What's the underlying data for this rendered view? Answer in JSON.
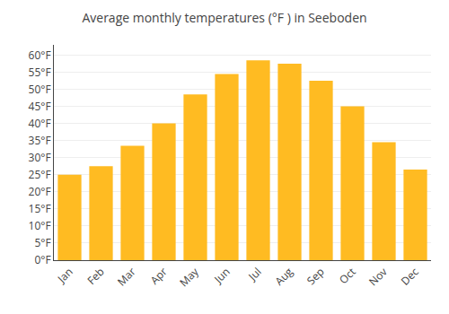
{
  "chart_data": {
    "type": "bar",
    "title": "Average monthly temperatures (°F ) in Seeboden",
    "categories": [
      "Jan",
      "Feb",
      "Mar",
      "Apr",
      "May",
      "Jun",
      "Jul",
      "Aug",
      "Sep",
      "Oct",
      "Nov",
      "Dec"
    ],
    "values": [
      25.0,
      27.5,
      33.5,
      40.0,
      48.5,
      54.5,
      58.5,
      57.5,
      52.5,
      45.0,
      34.5,
      26.5
    ],
    "color": "#FFBB22",
    "ylim": [
      0,
      63
    ],
    "yticks": [
      {
        "value": 0,
        "label": "0°F"
      },
      {
        "value": 5,
        "label": "5°F"
      },
      {
        "value": 10,
        "label": "10°F"
      },
      {
        "value": 15,
        "label": "15°F"
      },
      {
        "value": 20,
        "label": "20°F"
      },
      {
        "value": 25,
        "label": "25°F"
      },
      {
        "value": 30,
        "label": "30°F"
      },
      {
        "value": 35,
        "label": "35°F"
      },
      {
        "value": 40,
        "label": "40°F"
      },
      {
        "value": 45,
        "label": "45°F"
      },
      {
        "value": 50,
        "label": "50°F"
      },
      {
        "value": 55,
        "label": "55°F"
      },
      {
        "value": 60,
        "label": "60°F"
      }
    ],
    "grid": true
  }
}
